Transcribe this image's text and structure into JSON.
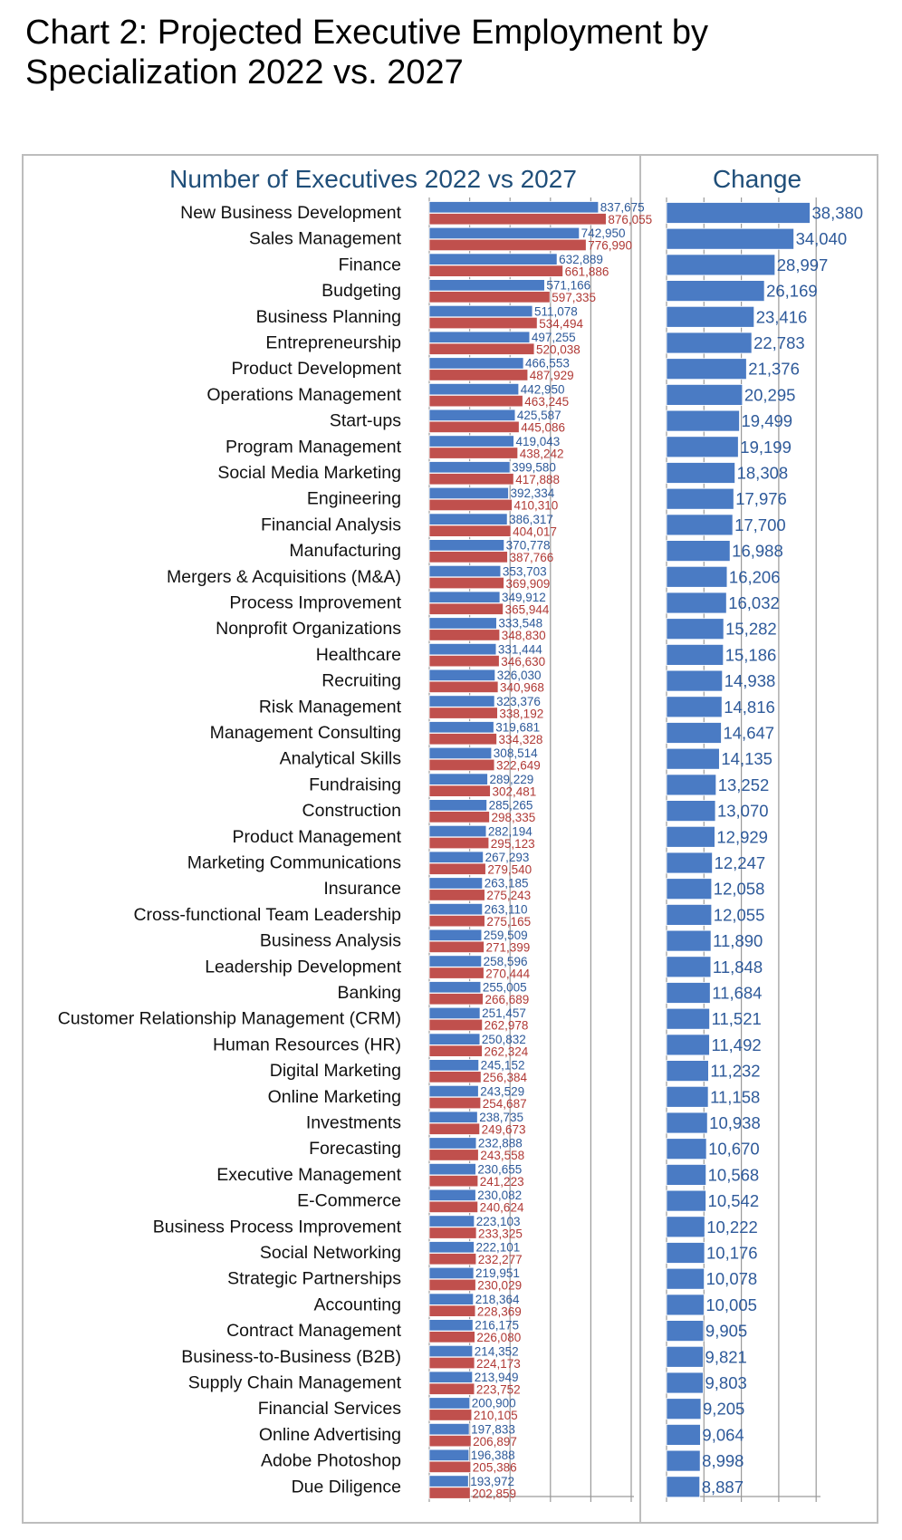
{
  "title": "Chart 2: Projected Executive Employment by Specialization 2022 vs. 2027",
  "chart_data": [
    {
      "type": "bar",
      "orientation": "horizontal",
      "title": "Number of Executives 2022 vs 2027",
      "categories": [
        "New Business Development",
        "Sales Management",
        "Finance",
        "Budgeting",
        "Business Planning",
        "Entrepreneurship",
        "Product Development",
        "Operations Management",
        "Start-ups",
        "Program Management",
        "Social Media Marketing",
        "Engineering",
        "Financial Analysis",
        "Manufacturing",
        "Mergers & Acquisitions (M&A)",
        "Process Improvement",
        "Nonprofit Organizations",
        "Healthcare",
        "Recruiting",
        "Risk Management",
        "Management Consulting",
        "Analytical Skills",
        "Fundraising",
        "Construction",
        "Product Management",
        "Marketing Communications",
        "Insurance",
        "Cross-functional Team Leadership",
        "Business Analysis",
        "Leadership Development",
        "Banking",
        "Customer Relationship Management (CRM)",
        "Human Resources (HR)",
        "Digital Marketing",
        "Online Marketing",
        "Investments",
        "Forecasting",
        "Executive Management",
        "E-Commerce",
        "Business Process Improvement",
        "Social Networking",
        "Strategic Partnerships",
        "Accounting",
        "Contract Management",
        "Business-to-Business (B2B)",
        "Supply Chain Management",
        "Financial Services",
        "Online Advertising",
        "Adobe Photoshop",
        "Due Diligence"
      ],
      "series": [
        {
          "values": [
            837675,
            742950,
            632889,
            571166,
            511078,
            497255,
            466553,
            442950,
            425587,
            419043,
            399580,
            392334,
            386317,
            370778,
            353703,
            349912,
            333548,
            331444,
            326030,
            323376,
            319681,
            308514,
            289229,
            285265,
            282194,
            267293,
            263185,
            263110,
            259509,
            258596,
            255005,
            251457,
            250832,
            245152,
            243529,
            238735,
            232888,
            230655,
            230082,
            223103,
            222101,
            219951,
            218364,
            216175,
            214352,
            213949,
            200900,
            197833,
            196388,
            193972
          ],
          "color": "#4a7bc4"
        },
        {
          "values": [
            876055,
            776990,
            661886,
            597335,
            534494,
            520038,
            487929,
            463245,
            445086,
            438242,
            417888,
            410310,
            404017,
            387766,
            369909,
            365944,
            348830,
            346630,
            340968,
            338192,
            334328,
            322649,
            302481,
            298335,
            295123,
            279540,
            275243,
            275165,
            271399,
            270444,
            266689,
            262978,
            262324,
            256384,
            254687,
            249673,
            243558,
            241223,
            240624,
            233325,
            232277,
            230029,
            228369,
            226080,
            224173,
            223752,
            210105,
            206897,
            205386,
            202859
          ],
          "color": "#c0504d"
        }
      ],
      "labels_2022": [
        "837,675",
        "742,950",
        "632,889",
        "571,166",
        "511,078",
        "497,255",
        "466,553",
        "442,950",
        "425,587",
        "419,043",
        "399,580",
        "392,334",
        "386,317",
        "370,778",
        "353,703",
        "349,912",
        "333,548",
        "331,444",
        "326,030",
        "323,376",
        "319,681",
        "308,514",
        "289,229",
        "285,265",
        "282,194",
        "267,293",
        "263,185",
        "263,110",
        "259,509",
        "258,596",
        "255,005",
        "251,457",
        "250,832",
        "245,152",
        "243,529",
        "238,735",
        "232,888",
        "230,655",
        "230,082",
        "223,103",
        "222,101",
        "219,951",
        "218,364",
        "216,175",
        "214,352",
        "213,949",
        "200,900",
        "197,833",
        "196,388",
        "193,972"
      ],
      "labels_2027": [
        "876,055",
        "776,990",
        "661,886",
        "597,335",
        "534,494",
        "520,038",
        "487,929",
        "463,245",
        "445,086",
        "438,242",
        "417,888",
        "410,310",
        "404,017",
        "387,766",
        "369,909",
        "365,944",
        "348,830",
        "346,630",
        "340,968",
        "338,192",
        "334,328",
        "322,649",
        "302,481",
        "298,335",
        "295,123",
        "279,540",
        "275,243",
        "275,165",
        "271,399",
        "270,444",
        "266,689",
        "262,978",
        "262,324",
        "256,384",
        "254,687",
        "249,673",
        "243,558",
        "241,223",
        "240,624",
        "233,325",
        "232,277",
        "230,029",
        "228,369",
        "226,080",
        "224,173",
        "223,752",
        "210,105",
        "206,897",
        "205,386",
        "202,859"
      ],
      "xlim": [
        0,
        1000000
      ],
      "grid": true,
      "bar_color_2022": "#4a7bc4",
      "bar_color_2027": "#c0504d"
    },
    {
      "type": "bar",
      "orientation": "horizontal",
      "title": "Change",
      "values": [
        38380,
        34040,
        28997,
        26169,
        23416,
        22783,
        21376,
        20295,
        19499,
        19199,
        18308,
        17976,
        17700,
        16988,
        16206,
        16032,
        15282,
        15186,
        14938,
        14816,
        14647,
        14135,
        13252,
        13070,
        12929,
        12247,
        12058,
        12055,
        11890,
        11848,
        11684,
        11521,
        11492,
        11232,
        11158,
        10938,
        10670,
        10568,
        10542,
        10222,
        10176,
        10078,
        10005,
        9905,
        9821,
        9803,
        9205,
        9064,
        8998,
        8887
      ],
      "labels": [
        "38,380",
        "34,040",
        "28,997",
        "26,169",
        "23,416",
        "22,783",
        "21,376",
        "20,295",
        "19,499",
        "19,199",
        "18,308",
        "17,976",
        "17,700",
        "16,988",
        "16,206",
        "16,032",
        "15,282",
        "15,186",
        "14,938",
        "14,816",
        "14,647",
        "14,135",
        "13,252",
        "13,070",
        "12,929",
        "12,247",
        "12,058",
        "12,055",
        "11,890",
        "11,848",
        "11,684",
        "11,521",
        "11,492",
        "11,232",
        "11,158",
        "10,938",
        "10,670",
        "10,568",
        "10,542",
        "10,222",
        "10,176",
        "10,078",
        "10,005",
        "9,905",
        "9,821",
        "9,803",
        "9,205",
        "9,064",
        "8,998",
        "8,887"
      ],
      "xlim": [
        0,
        40000
      ],
      "grid": true,
      "bar_color": "#4a7bc4"
    }
  ],
  "colors": {
    "title_blue": "#1f4e79",
    "label_blue": "#2e5a9a",
    "label_red": "#b03a36",
    "grid": "#9a9a9a"
  }
}
